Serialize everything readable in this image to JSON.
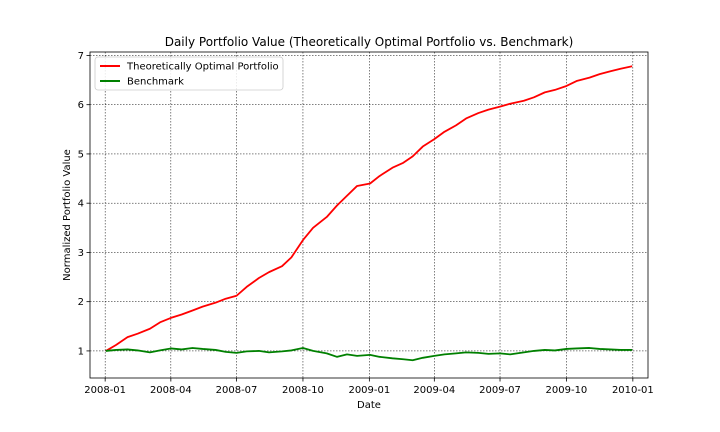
{
  "chart_data": {
    "type": "line",
    "title": "Daily Portfolio Value (Theoretically Optimal Portfolio vs. Benchmark)",
    "xlabel": "Date",
    "ylabel": "Normalized Portfolio Value",
    "xlim": [
      "2007-12-11",
      "2010-01-22"
    ],
    "ylim": [
      0.45,
      7.07
    ],
    "x_ticks": [
      "2008-01",
      "2008-04",
      "2008-07",
      "2008-10",
      "2009-01",
      "2009-04",
      "2009-07",
      "2009-10",
      "2010-01"
    ],
    "y_ticks": [
      1,
      2,
      3,
      4,
      5,
      6,
      7
    ],
    "grid": true,
    "grid_style": "dotted",
    "legend_position": "upper-left",
    "series": [
      {
        "name": "Theoretically Optimal Portfolio",
        "color": "#ff0000",
        "x": [
          "2008-01-02",
          "2008-01-16",
          "2008-02-01",
          "2008-02-15",
          "2008-03-03",
          "2008-03-17",
          "2008-04-01",
          "2008-04-16",
          "2008-05-01",
          "2008-05-15",
          "2008-06-02",
          "2008-06-16",
          "2008-07-01",
          "2008-07-15",
          "2008-08-01",
          "2008-08-15",
          "2008-09-02",
          "2008-09-15",
          "2008-10-01",
          "2008-10-15",
          "2008-11-03",
          "2008-11-17",
          "2008-12-01",
          "2008-12-15",
          "2009-01-02",
          "2009-01-15",
          "2009-02-02",
          "2009-02-17",
          "2009-03-02",
          "2009-03-16",
          "2009-04-01",
          "2009-04-15",
          "2009-05-01",
          "2009-05-15",
          "2009-06-01",
          "2009-06-15",
          "2009-07-01",
          "2009-07-15",
          "2009-08-03",
          "2009-08-17",
          "2009-09-01",
          "2009-09-15",
          "2009-10-01",
          "2009-10-15",
          "2009-11-02",
          "2009-11-16",
          "2009-12-01",
          "2009-12-15",
          "2009-12-31"
        ],
        "values": [
          1.0,
          1.12,
          1.28,
          1.35,
          1.45,
          1.58,
          1.67,
          1.74,
          1.82,
          1.9,
          1.98,
          2.06,
          2.12,
          2.3,
          2.48,
          2.6,
          2.72,
          2.9,
          3.25,
          3.5,
          3.72,
          3.95,
          4.15,
          4.35,
          4.4,
          4.55,
          4.72,
          4.82,
          4.95,
          5.15,
          5.3,
          5.45,
          5.58,
          5.72,
          5.83,
          5.9,
          5.96,
          6.02,
          6.08,
          6.15,
          6.25,
          6.3,
          6.38,
          6.48,
          6.55,
          6.62,
          6.68,
          6.73,
          6.78
        ]
      },
      {
        "name": "Benchmark",
        "color": "#008000",
        "x": [
          "2008-01-02",
          "2008-01-16",
          "2008-02-01",
          "2008-02-15",
          "2008-03-03",
          "2008-03-17",
          "2008-04-01",
          "2008-04-16",
          "2008-05-01",
          "2008-05-15",
          "2008-06-02",
          "2008-06-16",
          "2008-07-01",
          "2008-07-15",
          "2008-08-01",
          "2008-08-15",
          "2008-09-02",
          "2008-09-15",
          "2008-10-01",
          "2008-10-15",
          "2008-11-03",
          "2008-11-17",
          "2008-12-01",
          "2008-12-15",
          "2009-01-02",
          "2009-01-15",
          "2009-02-02",
          "2009-02-17",
          "2009-03-02",
          "2009-03-16",
          "2009-04-01",
          "2009-04-15",
          "2009-05-01",
          "2009-05-15",
          "2009-06-01",
          "2009-06-15",
          "2009-07-01",
          "2009-07-15",
          "2009-08-03",
          "2009-08-17",
          "2009-09-01",
          "2009-09-15",
          "2009-10-01",
          "2009-10-15",
          "2009-11-02",
          "2009-11-16",
          "2009-12-01",
          "2009-12-15",
          "2009-12-31"
        ],
        "values": [
          1.0,
          1.02,
          1.03,
          1.01,
          0.97,
          1.01,
          1.05,
          1.03,
          1.06,
          1.04,
          1.02,
          0.98,
          0.96,
          0.99,
          1.0,
          0.97,
          0.99,
          1.01,
          1.06,
          1.0,
          0.95,
          0.88,
          0.93,
          0.9,
          0.92,
          0.88,
          0.85,
          0.83,
          0.81,
          0.86,
          0.9,
          0.93,
          0.95,
          0.97,
          0.96,
          0.94,
          0.95,
          0.93,
          0.97,
          1.0,
          1.02,
          1.01,
          1.04,
          1.05,
          1.06,
          1.04,
          1.03,
          1.02,
          1.02
        ]
      }
    ]
  }
}
